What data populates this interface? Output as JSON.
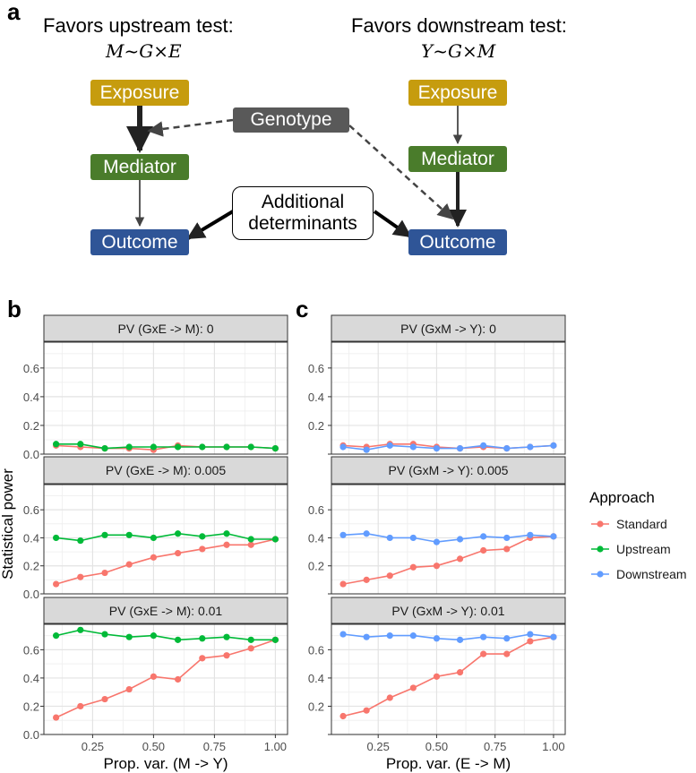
{
  "panel_a": {
    "label": "a",
    "left_heading": "Favors upstream test:",
    "left_formula": "M~G×E",
    "right_heading": "Favors downstream test:",
    "right_formula": "Y~G×M",
    "exposure": "Exposure",
    "mediator": "Mediator",
    "outcome": "Outcome",
    "genotype": "Genotype",
    "additional_line1": "Additional",
    "additional_line2": "determinants"
  },
  "panel_b_label": "b",
  "panel_c_label": "c",
  "ylabel": "Statistical power",
  "legend": {
    "title": "Approach",
    "items": [
      "Standard",
      "Upstream",
      "Downstream"
    ]
  },
  "colors": {
    "standard": "#f8766d",
    "upstream": "#00ba38",
    "downstream": "#619cff",
    "strip_bg": "#d9d9d9"
  },
  "chart_data": [
    {
      "type": "line",
      "panel": "b",
      "xlabel": "Prop. var. (M -> Y)",
      "ylabel": "Statistical power",
      "x": [
        0.1,
        0.2,
        0.3,
        0.4,
        0.5,
        0.6,
        0.7,
        0.8,
        0.9,
        1.0
      ],
      "xticks": [
        "0.25",
        "0.50",
        "0.75",
        "1.00"
      ],
      "xlim": [
        0.05,
        1.05
      ],
      "facets": [
        {
          "strip": "PV (GxE -> M): 0",
          "ylim": [
            0.0,
            0.78
          ],
          "yticks": [
            "0.0",
            "0.2",
            "0.4",
            "0.6"
          ],
          "series": [
            {
              "name": "Standard",
              "values": [
                0.06,
                0.05,
                0.04,
                0.04,
                0.03,
                0.06,
                0.05,
                0.05,
                0.05,
                0.04
              ]
            },
            {
              "name": "Upstream",
              "values": [
                0.07,
                0.07,
                0.04,
                0.05,
                0.05,
                0.05,
                0.05,
                0.05,
                0.05,
                0.04
              ]
            }
          ]
        },
        {
          "strip": "PV (GxE -> M): 0.005",
          "ylim": [
            0.0,
            0.78
          ],
          "yticks": [
            "0.0",
            "0.2",
            "0.4",
            "0.6"
          ],
          "series": [
            {
              "name": "Standard",
              "values": [
                0.07,
                0.12,
                0.15,
                0.21,
                0.26,
                0.29,
                0.32,
                0.35,
                0.35,
                0.39
              ]
            },
            {
              "name": "Upstream",
              "values": [
                0.4,
                0.38,
                0.42,
                0.42,
                0.4,
                0.43,
                0.41,
                0.43,
                0.39,
                0.39
              ]
            }
          ]
        },
        {
          "strip": "PV (GxE -> M): 0.01",
          "ylim": [
            0.0,
            0.78
          ],
          "yticks": [
            "0.0",
            "0.2",
            "0.4",
            "0.6"
          ],
          "series": [
            {
              "name": "Standard",
              "values": [
                0.12,
                0.2,
                0.25,
                0.32,
                0.41,
                0.39,
                0.54,
                0.56,
                0.61,
                0.67
              ]
            },
            {
              "name": "Upstream",
              "values": [
                0.7,
                0.74,
                0.71,
                0.69,
                0.7,
                0.67,
                0.68,
                0.69,
                0.67,
                0.67
              ]
            }
          ]
        }
      ]
    },
    {
      "type": "line",
      "panel": "c",
      "xlabel": "Prop. var. (E -> M)",
      "ylabel": "Statistical power",
      "x": [
        0.1,
        0.2,
        0.3,
        0.4,
        0.5,
        0.6,
        0.7,
        0.8,
        0.9,
        1.0
      ],
      "xticks": [
        "0.25",
        "0.50",
        "0.75",
        "1.00"
      ],
      "xlim": [
        0.05,
        1.05
      ],
      "facets": [
        {
          "strip": "PV (GxM -> Y): 0",
          "ylim": [
            0.0,
            0.78
          ],
          "yticks": [
            "",
            "0.2",
            "0.4",
            "0.6"
          ],
          "series": [
            {
              "name": "Standard",
              "values": [
                0.06,
                0.05,
                0.07,
                0.07,
                0.05,
                0.04,
                0.05,
                0.04,
                0.05,
                0.06
              ]
            },
            {
              "name": "Downstream",
              "values": [
                0.05,
                0.03,
                0.06,
                0.05,
                0.04,
                0.04,
                0.06,
                0.04,
                0.05,
                0.06
              ]
            }
          ]
        },
        {
          "strip": "PV (GxM -> Y): 0.005",
          "ylim": [
            0.0,
            0.78
          ],
          "yticks": [
            "",
            "0.2",
            "0.4",
            "0.6"
          ],
          "series": [
            {
              "name": "Standard",
              "values": [
                0.07,
                0.1,
                0.13,
                0.19,
                0.2,
                0.25,
                0.31,
                0.32,
                0.4,
                0.41
              ]
            },
            {
              "name": "Downstream",
              "values": [
                0.42,
                0.43,
                0.4,
                0.4,
                0.37,
                0.39,
                0.41,
                0.4,
                0.42,
                0.41
              ]
            }
          ]
        },
        {
          "strip": "PV (GxM -> Y): 0.01",
          "ylim": [
            0.0,
            0.78
          ],
          "yticks": [
            "",
            "0.2",
            "0.4",
            "0.6"
          ],
          "series": [
            {
              "name": "Standard",
              "values": [
                0.13,
                0.17,
                0.26,
                0.33,
                0.41,
                0.44,
                0.57,
                0.57,
                0.66,
                0.69
              ]
            },
            {
              "name": "Downstream",
              "values": [
                0.71,
                0.69,
                0.7,
                0.7,
                0.68,
                0.67,
                0.69,
                0.68,
                0.71,
                0.69
              ]
            }
          ]
        }
      ]
    }
  ]
}
